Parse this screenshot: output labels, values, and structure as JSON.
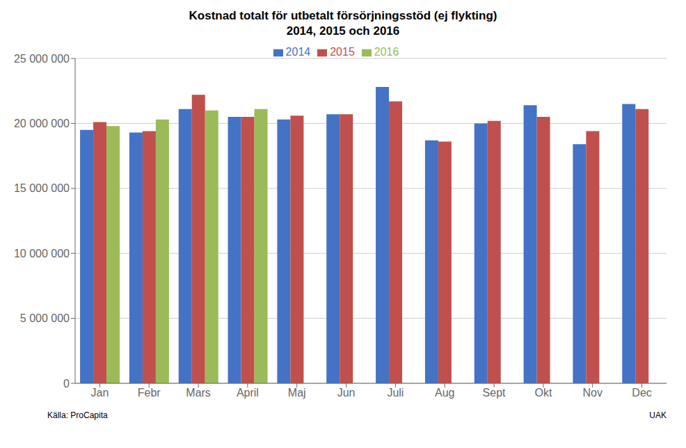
{
  "chart_data": {
    "type": "bar",
    "title": "Kostnad totalt för utbetalt försörjningsstöd (ej flykting)",
    "subtitle": "2014, 2015 och 2016",
    "categories": [
      "Jan",
      "Febr",
      "Mars",
      "April",
      "Maj",
      "Jun",
      "Juli",
      "Aug",
      "Sept",
      "Okt",
      "Nov",
      "Dec"
    ],
    "series": [
      {
        "name": "2014",
        "color": "#4472C4",
        "values": [
          19500000,
          19300000,
          21100000,
          20500000,
          20300000,
          20700000,
          22800000,
          18700000,
          20000000,
          21400000,
          18400000,
          21500000
        ]
      },
      {
        "name": "2015",
        "color": "#C0504D",
        "values": [
          20100000,
          19400000,
          22200000,
          20500000,
          20600000,
          20700000,
          21700000,
          18600000,
          20200000,
          20500000,
          19400000,
          21100000
        ]
      },
      {
        "name": "2016",
        "color": "#9BBB59",
        "values": [
          19800000,
          20300000,
          21000000,
          21100000,
          null,
          null,
          null,
          null,
          null,
          null,
          null,
          null
        ]
      }
    ],
    "ylim": [
      0,
      25000000
    ],
    "yticks": [
      0,
      {
        "value": 5000000,
        "label": "5 000 000"
      },
      {
        "value": 10000000,
        "label": "10 000 000"
      },
      {
        "value": 15000000,
        "label": "15 000 000"
      },
      {
        "value": 20000000,
        "label": "20 000 000"
      },
      {
        "value": 25000000,
        "label": "25 000 000"
      }
    ],
    "grid": true,
    "legend": "top",
    "annotations": [
      "Källa: ProCapita",
      "UAK"
    ]
  }
}
